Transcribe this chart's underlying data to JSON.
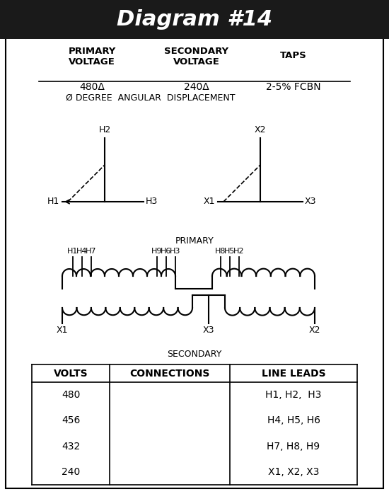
{
  "title": "Diagram #14",
  "title_bg": "#1a1a1a",
  "title_color": "#ffffff",
  "bg_color": "#ffffff",
  "border_color": "#000000",
  "primary_voltage": "480Δ",
  "secondary_voltage": "240Δ",
  "taps": "2-5% FCBN",
  "angular_displacement": "Ø DEGREE  ANGULAR  DISPLACEMENT",
  "col_headers": [
    "PRIMARY\nVOLTAGE",
    "SECONDARY\nVOLTAGE",
    "TAPS"
  ],
  "table_headers": [
    "VOLTS",
    "CONNECTIONS",
    "LINE LEADS"
  ],
  "table_rows": [
    [
      "480",
      "",
      "H1, H2,  H3"
    ],
    [
      "456",
      "",
      "H4, H5, H6"
    ],
    [
      "432",
      "",
      "H7, H8, H9"
    ],
    [
      "240",
      "",
      "X1, X2, X3"
    ]
  ],
  "secondary_label": "SECONDARY",
  "primary_label": "PRIMARY"
}
